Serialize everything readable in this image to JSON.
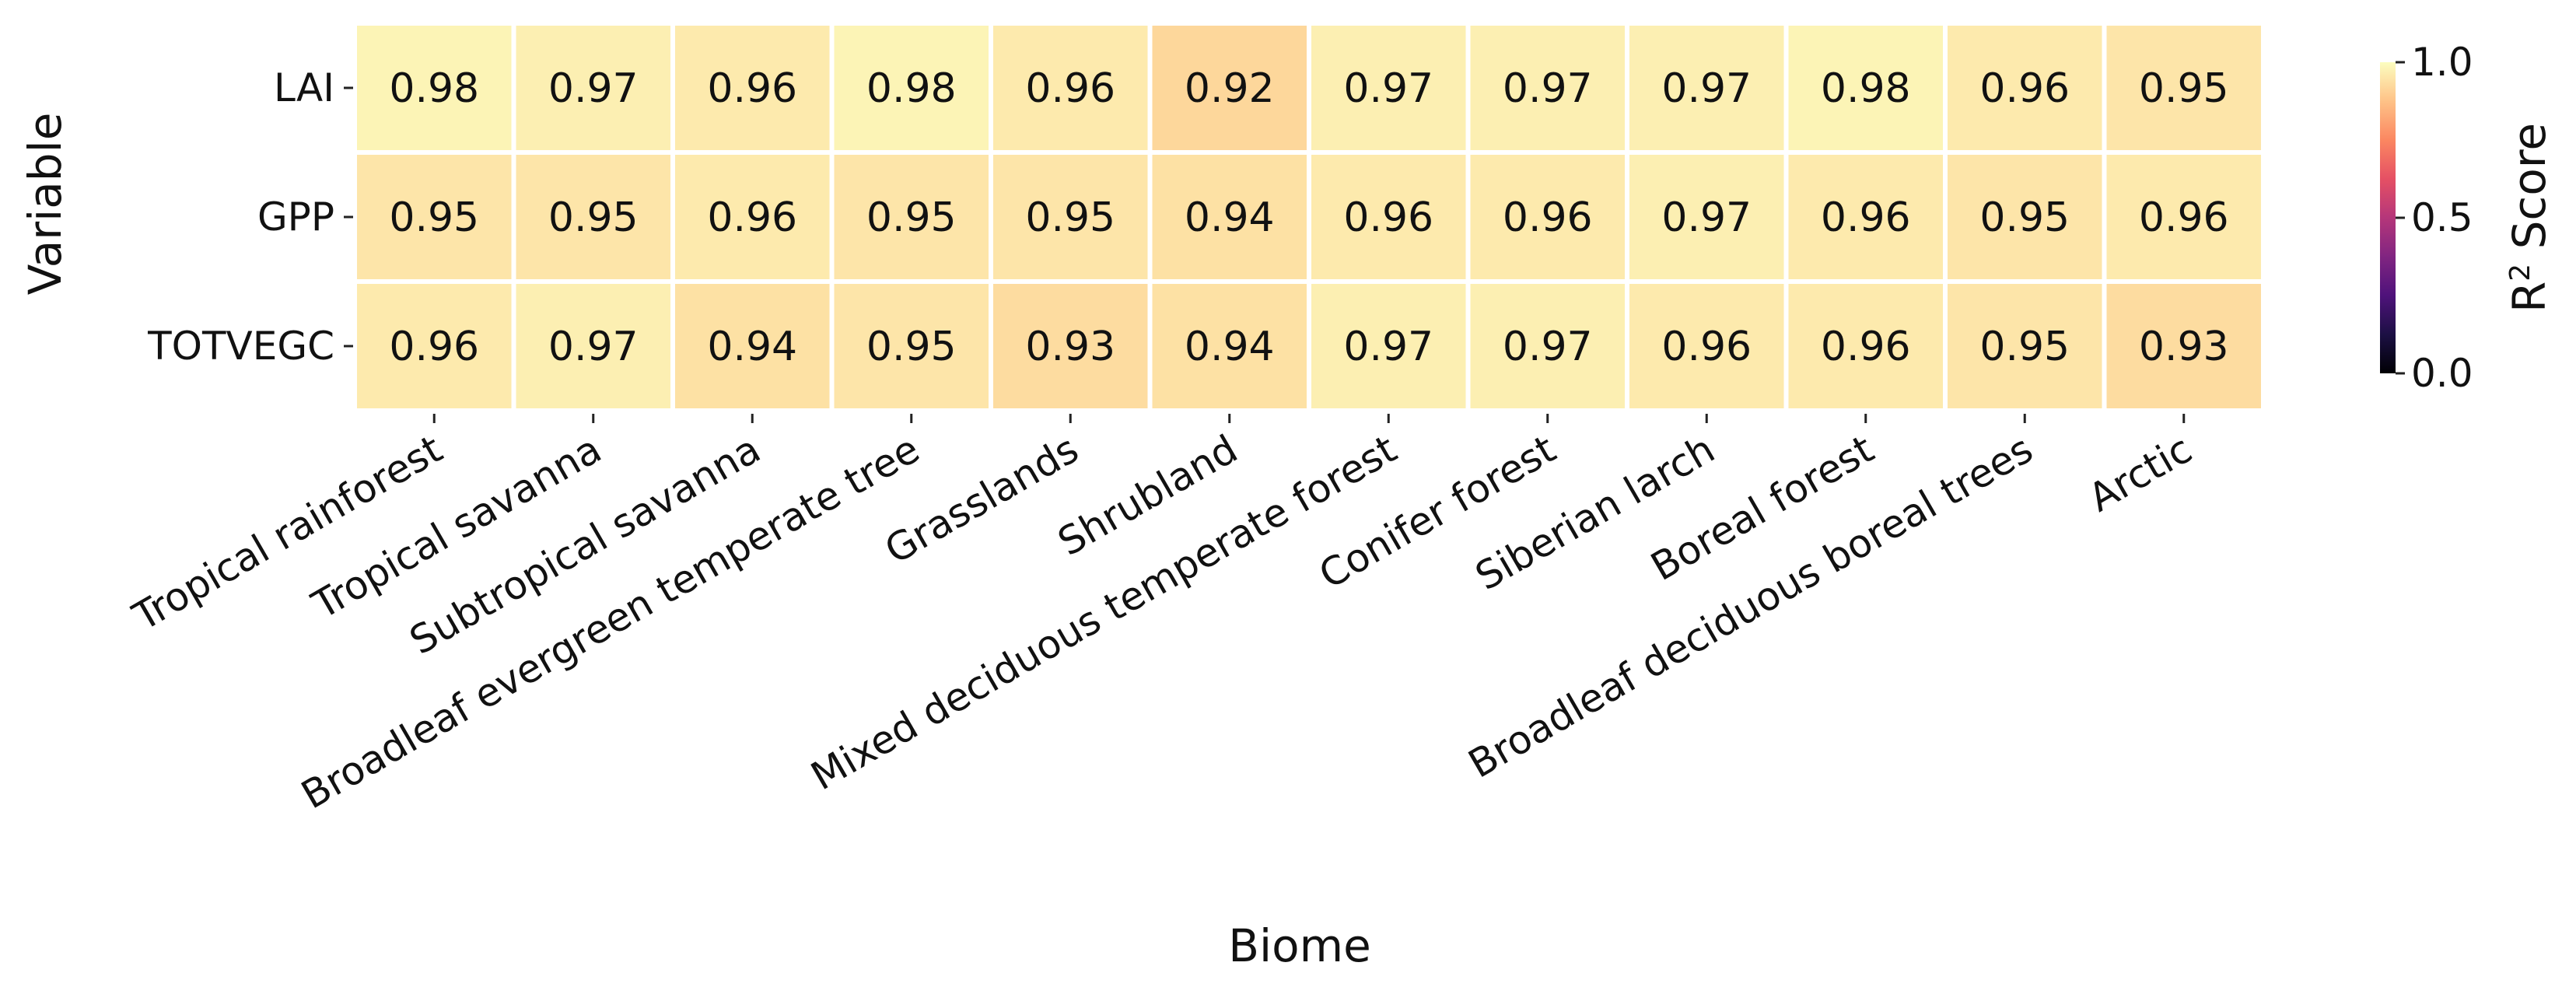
{
  "chart_data": {
    "type": "heatmap",
    "xlabel": "Biome",
    "ylabel": "Variable",
    "x_categories": [
      "Tropical rainforest",
      "Tropical savanna",
      "Subtropical savanna",
      "Broadleaf evergreen temperate tree",
      "Grasslands",
      "Shrubland",
      "Mixed deciduous temperate forest",
      "Conifer forest",
      "Siberian larch",
      "Boreal forest",
      "Broadleaf deciduous boreal trees",
      "Arctic"
    ],
    "y_categories": [
      "LAI",
      "GPP",
      "TOTVEGC"
    ],
    "values": [
      [
        0.98,
        0.97,
        0.96,
        0.98,
        0.96,
        0.92,
        0.97,
        0.97,
        0.97,
        0.98,
        0.96,
        0.95
      ],
      [
        0.95,
        0.95,
        0.96,
        0.95,
        0.95,
        0.94,
        0.96,
        0.96,
        0.97,
        0.96,
        0.95,
        0.96
      ],
      [
        0.96,
        0.97,
        0.94,
        0.95,
        0.93,
        0.94,
        0.97,
        0.97,
        0.96,
        0.96,
        0.95,
        0.93
      ]
    ],
    "value_labels": [
      [
        "0.98",
        "0.97",
        "0.96",
        "0.98",
        "0.96",
        "0.92",
        "0.97",
        "0.97",
        "0.97",
        "0.98",
        "0.96",
        "0.95"
      ],
      [
        "0.95",
        "0.95",
        "0.96",
        "0.95",
        "0.95",
        "0.94",
        "0.96",
        "0.96",
        "0.97",
        "0.96",
        "0.95",
        "0.96"
      ],
      [
        "0.96",
        "0.97",
        "0.94",
        "0.95",
        "0.93",
        "0.94",
        "0.97",
        "0.97",
        "0.96",
        "0.96",
        "0.95",
        "0.93"
      ]
    ],
    "colorbar": {
      "label_base": "R",
      "label_sup": "2",
      "label_rest": " Score",
      "range": [
        0.0,
        1.0
      ],
      "ticks": [
        0.0,
        0.5,
        1.0
      ],
      "tick_labels": [
        "0.0",
        "0.5",
        "1.0"
      ],
      "colormap": "magma"
    },
    "grid": false,
    "legend": "colorbar-right"
  }
}
